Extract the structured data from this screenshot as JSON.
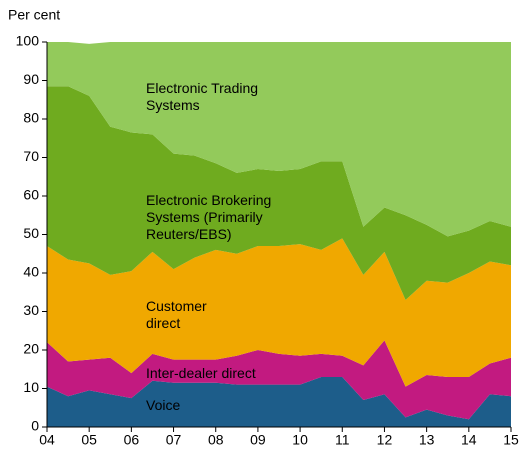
{
  "chart_data": {
    "type": "stacked_area",
    "y_label": "Per cent",
    "x": [
      2004,
      2004.5,
      2005,
      2005.5,
      2006,
      2006.5,
      2007,
      2007.5,
      2008,
      2008.5,
      2009,
      2009.5,
      2010,
      2010.5,
      2011,
      2011.5,
      2012,
      2012.5,
      2013,
      2013.5,
      2014,
      2014.5,
      2015
    ],
    "series": [
      {
        "name": "Voice",
        "color": "#1d5d8a",
        "values": [
          10.5,
          8,
          9.5,
          8.5,
          7.5,
          12,
          11.5,
          11.5,
          11.5,
          11,
          11,
          11,
          11,
          13,
          13,
          7,
          8.5,
          2.5,
          4.5,
          3,
          2,
          8.5,
          8
        ]
      },
      {
        "name": "Inter-dealer direct",
        "color": "#c21a80",
        "values": [
          11.5,
          9,
          8,
          9.5,
          6.5,
          7,
          6,
          6,
          6,
          7.5,
          9,
          8,
          7.5,
          6,
          5.5,
          9,
          14,
          8,
          9,
          10,
          11,
          8,
          10
        ]
      },
      {
        "name": "Customer direct",
        "color": "#f0a800",
        "values": [
          25,
          26.5,
          25,
          21.5,
          26.5,
          26.5,
          23.5,
          26.5,
          28.5,
          26.5,
          27,
          28,
          29,
          27,
          30.5,
          23.5,
          23,
          22.5,
          24.5,
          24.5,
          27,
          26.5,
          24
        ]
      },
      {
        "name": "Electronic Brokering Systems (Primarily Reuters/EBS)",
        "color": "#6fab1f",
        "values": [
          41.5,
          45,
          43.5,
          38.5,
          36,
          30.5,
          30,
          26.5,
          22.5,
          21,
          20,
          19.5,
          19.5,
          23,
          20,
          12.5,
          11.5,
          22,
          14.5,
          12,
          11,
          10.5,
          10
        ]
      },
      {
        "name": "Electronic Trading Systems",
        "color": "#93ca5b",
        "values": [
          11.5,
          11.5,
          13.5,
          22,
          23.5,
          24,
          29,
          29.5,
          31.5,
          34,
          33,
          33.5,
          33,
          31,
          31,
          48,
          43,
          45,
          47.5,
          50.5,
          49,
          46.5,
          48
        ]
      }
    ],
    "xlim": [
      2004,
      2015
    ],
    "xticks": [
      {
        "value": 2004,
        "label": "04"
      },
      {
        "value": 2005,
        "label": "05"
      },
      {
        "value": 2006,
        "label": "06"
      },
      {
        "value": 2007,
        "label": "07"
      },
      {
        "value": 2008,
        "label": "08"
      },
      {
        "value": 2009,
        "label": "09"
      },
      {
        "value": 2010,
        "label": "10"
      },
      {
        "value": 2011,
        "label": "11"
      },
      {
        "value": 2012,
        "label": "12"
      },
      {
        "value": 2013,
        "label": "13"
      },
      {
        "value": 2014,
        "label": "14"
      },
      {
        "value": 2015,
        "label": "15"
      }
    ],
    "ylim": [
      0,
      100
    ],
    "yticks": [
      0,
      10,
      20,
      30,
      40,
      50,
      60,
      70,
      80,
      90,
      100
    ],
    "grid": false
  }
}
